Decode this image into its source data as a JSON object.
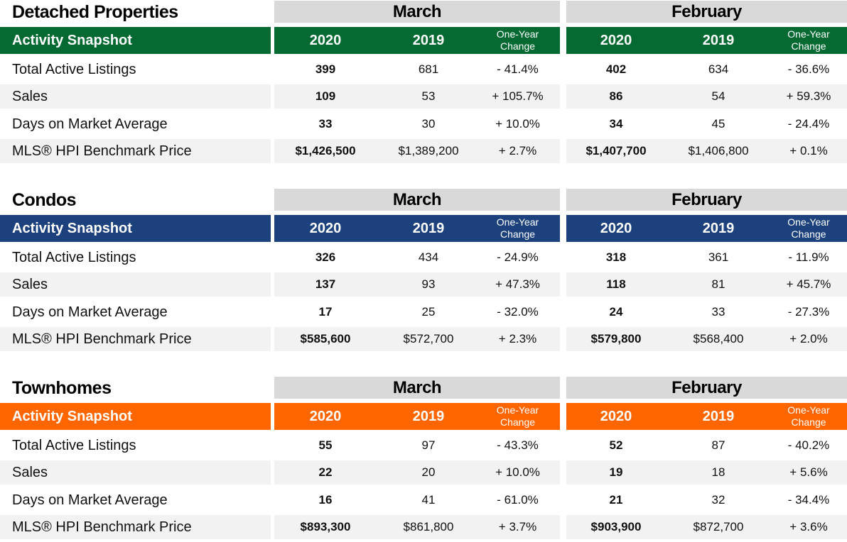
{
  "colors": {
    "detached": "#046a32",
    "condos": "#1c417c",
    "townhomes": "#ff6600",
    "header_gray": "#d9d9d9",
    "stripe": "#f2f2f2"
  },
  "headers": {
    "snapshot": "Activity Snapshot",
    "y2020": "2020",
    "y2019": "2019",
    "change_line1": "One-Year",
    "change_line2": "Change"
  },
  "sections": [
    {
      "title": "Detached Properties",
      "months": [
        "March",
        "February"
      ],
      "rows": [
        {
          "label": "Total Active Listings",
          "vals": [
            "399",
            "681",
            "- 41.4%",
            "402",
            "634",
            "- 36.6%"
          ]
        },
        {
          "label": "Sales",
          "vals": [
            "109",
            "53",
            "+ 105.7%",
            "86",
            "54",
            "+ 59.3%"
          ]
        },
        {
          "label": "Days on Market Average",
          "vals": [
            "33",
            "30",
            "+ 10.0%",
            "34",
            "45",
            "- 24.4%"
          ]
        },
        {
          "label": "MLS® HPI Benchmark Price",
          "vals": [
            "$1,426,500",
            "$1,389,200",
            "+ 2.7%",
            "$1,407,700",
            "$1,406,800",
            "+ 0.1%"
          ]
        }
      ]
    },
    {
      "title": "Condos",
      "months": [
        "March",
        "February"
      ],
      "rows": [
        {
          "label": "Total Active Listings",
          "vals": [
            "326",
            "434",
            "- 24.9%",
            "318",
            "361",
            "- 11.9%"
          ]
        },
        {
          "label": "Sales",
          "vals": [
            "137",
            "93",
            "+ 47.3%",
            "118",
            "81",
            "+ 45.7%"
          ]
        },
        {
          "label": "Days on Market Average",
          "vals": [
            "17",
            "25",
            "- 32.0%",
            "24",
            "33",
            "- 27.3%"
          ]
        },
        {
          "label": "MLS® HPI Benchmark Price",
          "vals": [
            "$585,600",
            "$572,700",
            "+ 2.3%",
            "$579,800",
            "$568,400",
            "+ 2.0%"
          ]
        }
      ]
    },
    {
      "title": "Townhomes",
      "months": [
        "March",
        "February"
      ],
      "rows": [
        {
          "label": "Total Active Listings",
          "vals": [
            "55",
            "97",
            "- 43.3%",
            "52",
            "87",
            "- 40.2%"
          ]
        },
        {
          "label": "Sales",
          "vals": [
            "22",
            "20",
            "+ 10.0%",
            "19",
            "18",
            "+ 5.6%"
          ]
        },
        {
          "label": "Days on Market Average",
          "vals": [
            "16",
            "41",
            "- 61.0%",
            "21",
            "32",
            "- 34.4%"
          ]
        },
        {
          "label": "MLS® HPI Benchmark Price",
          "vals": [
            "$893,300",
            "$861,800",
            "+ 3.7%",
            "$903,900",
            "$872,700",
            "+ 3.6%"
          ]
        }
      ]
    }
  ]
}
